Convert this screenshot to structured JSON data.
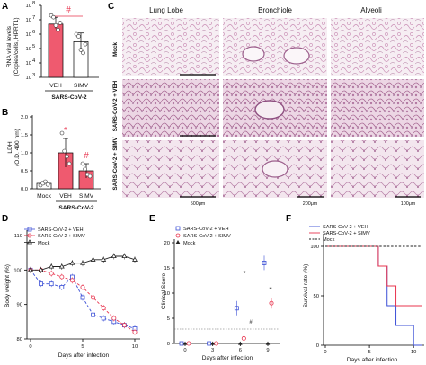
{
  "panel_labels": {
    "a": "A",
    "b": "B",
    "c": "C",
    "d": "D",
    "e": "E",
    "f": "F"
  },
  "colors": {
    "veh": "#3b4fd6",
    "simv": "#e8344e",
    "mock": "#222222",
    "tissue": "#c98cb4",
    "tissue_bg": "#f4eaf1"
  },
  "panel_a": {
    "ylabel_line1": "RNA viral levels",
    "ylabel_line2": "(Copies/cells, HPRT1)",
    "yticks": [
      "10",
      "10",
      "10",
      "10",
      "10",
      "10"
    ],
    "ytick_exp": [
      "8",
      "7",
      "6",
      "5",
      "4",
      "3"
    ],
    "sig": "#",
    "group_label": "SARS-CoV-2"
  },
  "panel_b": {
    "ylabel_line1": "LDH",
    "ylabel_line2": "(O.D. 490 nm)",
    "yticks": [
      "2.0",
      "1.5",
      "1.0",
      "0.5",
      "0.0"
    ],
    "sig_star": "*",
    "sig_hash": "#",
    "group_label": "SARS-CoV-2"
  },
  "panel_c": {
    "col_headers": [
      "Lung Lobe",
      "Bronchiole",
      "Alveoli"
    ],
    "row_labels": [
      "Mock",
      "SARS-CoV-2 + VEH",
      "SARS-CoV-2 + SIMV"
    ],
    "scalebars": [
      "500μm",
      "200μm",
      "100μm"
    ]
  },
  "panel_d": {
    "ylabel": "Body weight (%)",
    "xlabel": "Days after infection",
    "legend": [
      "SARS-CoV-2 + VEH",
      "SARS-CoV-2 + SIMV",
      "Mock"
    ],
    "yticks": [
      "110",
      "100",
      "90",
      "80"
    ],
    "xticks": [
      "0",
      "5",
      "10"
    ]
  },
  "panel_e": {
    "ylabel": "Clinical Score",
    "xlabel": "Days after infection",
    "legend": [
      "SARS-CoV-2 + VEH",
      "SARS-CoV-2 + SIMV",
      "Mock"
    ],
    "yticks": [
      "20",
      "15",
      "10",
      "5",
      "0"
    ],
    "xticks": [
      "0",
      "3",
      "6",
      "9"
    ],
    "sig_star": "*",
    "sig_hash": "#"
  },
  "panel_f": {
    "ylabel": "Survival rate (%)",
    "xlabel": "Days after infection",
    "legend": [
      "SARS-CoV-2 + VEH",
      "SARS-CoV-2 + SIMV",
      "Mock"
    ],
    "yticks": [
      "100",
      "50",
      "0"
    ],
    "xticks": [
      "0",
      "5",
      "10"
    ]
  },
  "chart_data": [
    {
      "panel": "A",
      "type": "bar",
      "categories": [
        "VEH",
        "SIMV"
      ],
      "values": [
        5000000,
        300000
      ],
      "error": [
        [
          2500000,
          15000000
        ],
        [
          80000,
          1200000
        ]
      ],
      "points": [
        [
          20000000,
          15000000,
          4000000,
          2000000,
          6000000
        ],
        [
          1000000,
          700000,
          80000,
          50000,
          200000
        ]
      ],
      "ylabel": "RNA viral levels (Copies/cells, HPRT1)",
      "yscale": "log",
      "ylim": [
        1000,
        100000000
      ]
    },
    {
      "panel": "B",
      "type": "bar",
      "categories": [
        "Mock",
        "VEH",
        "SIMV"
      ],
      "values": [
        0.15,
        1.0,
        0.5
      ],
      "error": [
        0.05,
        0.4,
        0.2
      ],
      "points": [
        [
          0.1,
          0.15,
          0.2,
          0.12
        ],
        [
          1.55,
          1.05,
          0.9,
          0.7
        ],
        [
          0.7,
          0.55,
          0.4,
          0.35
        ]
      ],
      "ylabel": "LDH (O.D. 490 nm)",
      "ylim": [
        0,
        2.0
      ]
    },
    {
      "panel": "D",
      "type": "line",
      "x": [
        0,
        1,
        2,
        3,
        4,
        5,
        6,
        7,
        8,
        9,
        10
      ],
      "series": [
        {
          "name": "SARS-CoV-2 + VEH",
          "values": [
            100,
            96,
            96,
            95,
            98,
            92,
            87,
            86,
            85,
            84,
            83
          ]
        },
        {
          "name": "SARS-CoV-2 + SIMV",
          "values": [
            100,
            100,
            99,
            98,
            97,
            95,
            92,
            89,
            86,
            84,
            82
          ]
        },
        {
          "name": "Mock",
          "values": [
            100,
            100,
            101,
            101,
            102,
            102,
            103,
            103,
            104,
            104,
            103
          ]
        }
      ],
      "xlabel": "Days after infection",
      "ylabel": "Body weight (%)",
      "ylim": [
        80,
        110
      ]
    },
    {
      "panel": "E",
      "type": "scatter",
      "x": [
        0,
        3,
        6,
        9
      ],
      "series": [
        {
          "name": "SARS-CoV-2 + VEH",
          "values": [
            0,
            0,
            7,
            16
          ]
        },
        {
          "name": "SARS-CoV-2 + SIMV",
          "values": [
            0,
            0,
            1,
            8
          ]
        },
        {
          "name": "Mock",
          "values": [
            0,
            0,
            0,
            0
          ]
        }
      ],
      "xlabel": "Days after infection",
      "ylabel": "Clinical Score",
      "ylim": [
        0,
        20
      ]
    },
    {
      "panel": "F",
      "type": "line",
      "x": [
        0,
        5,
        6,
        7,
        8,
        10,
        11
      ],
      "series": [
        {
          "name": "SARS-CoV-2 + VEH",
          "values": [
            100,
            100,
            80,
            40,
            20,
            0,
            0
          ]
        },
        {
          "name": "SARS-CoV-2 + SIMV",
          "values": [
            100,
            100,
            80,
            60,
            40,
            40,
            40
          ]
        },
        {
          "name": "Mock",
          "values": [
            100,
            100,
            100,
            100,
            100,
            100,
            100
          ]
        }
      ],
      "xlabel": "Days after infection",
      "ylabel": "Survival rate (%)",
      "ylim": [
        0,
        100
      ]
    }
  ]
}
